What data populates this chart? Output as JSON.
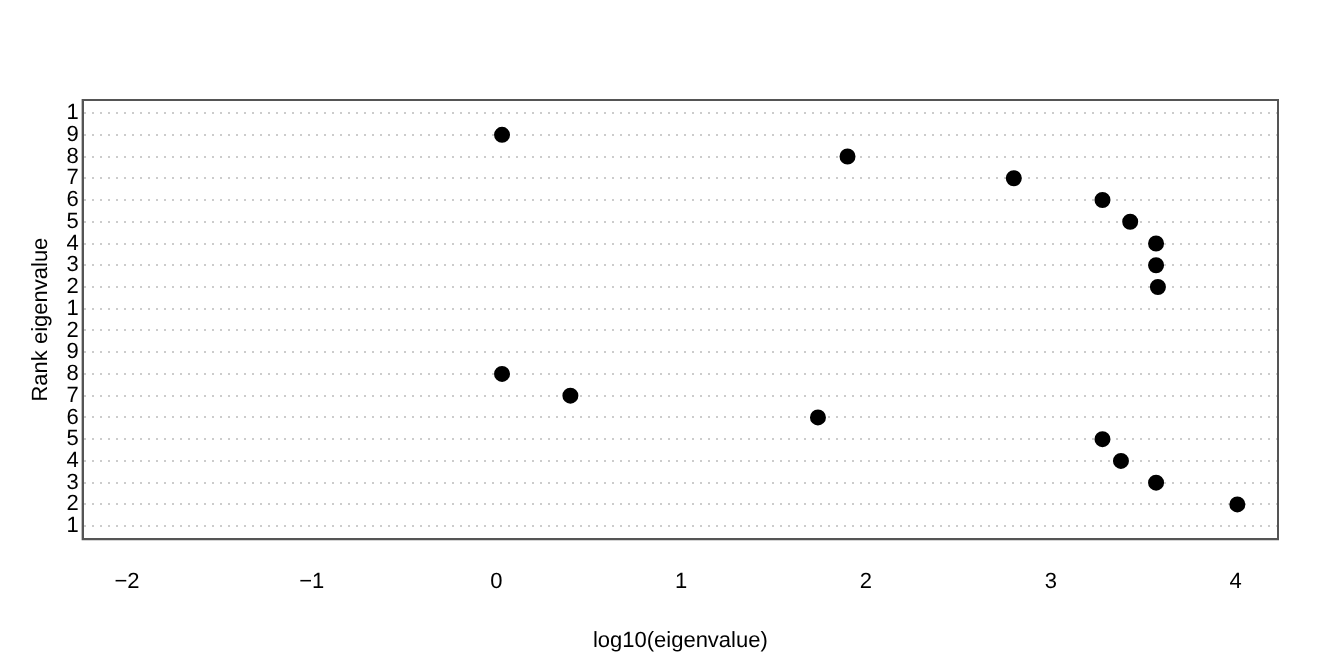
{
  "chart_data": {
    "type": "scatter",
    "orientation": "horizontal",
    "categories": [
      "1",
      "9",
      "8",
      "7",
      "6",
      "5",
      "4",
      "3",
      "2",
      "1",
      "2",
      "9",
      "8",
      "7",
      "6",
      "5",
      "4",
      "3",
      "2",
      "1"
    ],
    "values": [
      null,
      0.03,
      1.9,
      2.8,
      3.28,
      3.43,
      3.57,
      3.57,
      3.58,
      null,
      null,
      null,
      0.03,
      0.4,
      1.74,
      3.28,
      3.38,
      3.57,
      4.01,
      null
    ],
    "color": "#000000",
    "marker": "circle",
    "xlim": [
      -2.24,
      4.23
    ],
    "xticks": [
      -2,
      -1,
      0,
      1,
      2,
      3,
      4
    ],
    "xlabel": "log10(eigenvalue)",
    "ylabel": "Rank eigenvalue",
    "grid": "y"
  }
}
